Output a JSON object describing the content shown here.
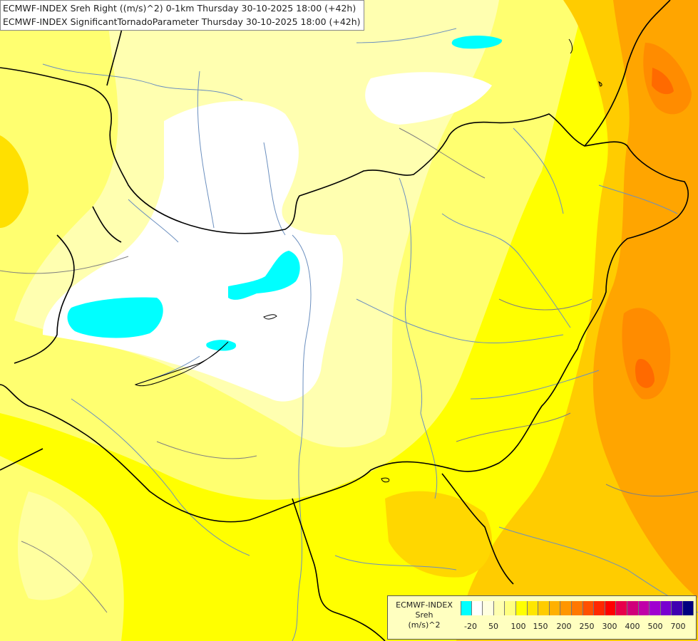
{
  "header": {
    "line1": "ECMWF-INDEX Sreh Right ((m/s)^2) 0-1km Thursday 30-10-2025 18:00 (+42h)",
    "line2": "ECMWF-INDEX SignificantTornadoParameter Thursday 30-10-2025 18:00 (+42h)"
  },
  "legend": {
    "title1": "ECMWF-INDEX",
    "title2": "Sreh",
    "title3": "(m/s)^2",
    "colors": [
      "#00ffff",
      "#ffffff",
      "#ffffe0",
      "#ffffb0",
      "#ffff80",
      "#ffff00",
      "#ffe600",
      "#ffcc00",
      "#ffb000",
      "#ff9600",
      "#ff7800",
      "#ff5000",
      "#ff2800",
      "#ff0000",
      "#e8004a",
      "#d0007a",
      "#c000a8",
      "#a000d0",
      "#7800d0",
      "#4000b0",
      "#000080"
    ],
    "ticks": [
      "-20",
      "50",
      "100",
      "150",
      "200",
      "250",
      "300",
      "400",
      "500",
      "700"
    ]
  }
}
